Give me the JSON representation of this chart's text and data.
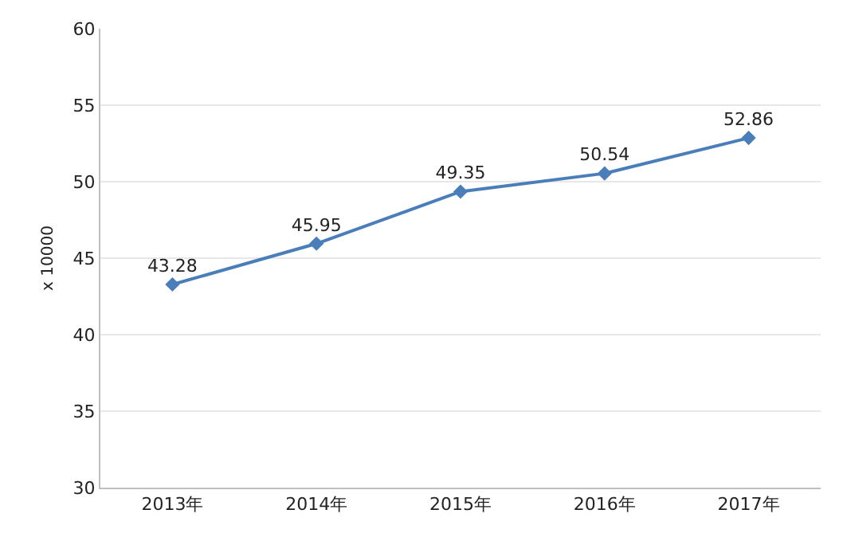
{
  "chart_data": {
    "type": "line",
    "ylabel": "x 10000",
    "categories": [
      "2013年",
      "2014年",
      "2015年",
      "2016年",
      "2017年"
    ],
    "series": [
      {
        "color": "#4a7ebb",
        "values": [
          43.28,
          45.95,
          49.35,
          50.54,
          52.86
        ]
      }
    ],
    "ylim": [
      30,
      60
    ],
    "yticks": [
      30,
      35,
      40,
      45,
      50,
      55,
      60
    ],
    "grid": "y",
    "legend": false,
    "marker": "diamond",
    "line_style": "solid",
    "data_labels": true
  }
}
